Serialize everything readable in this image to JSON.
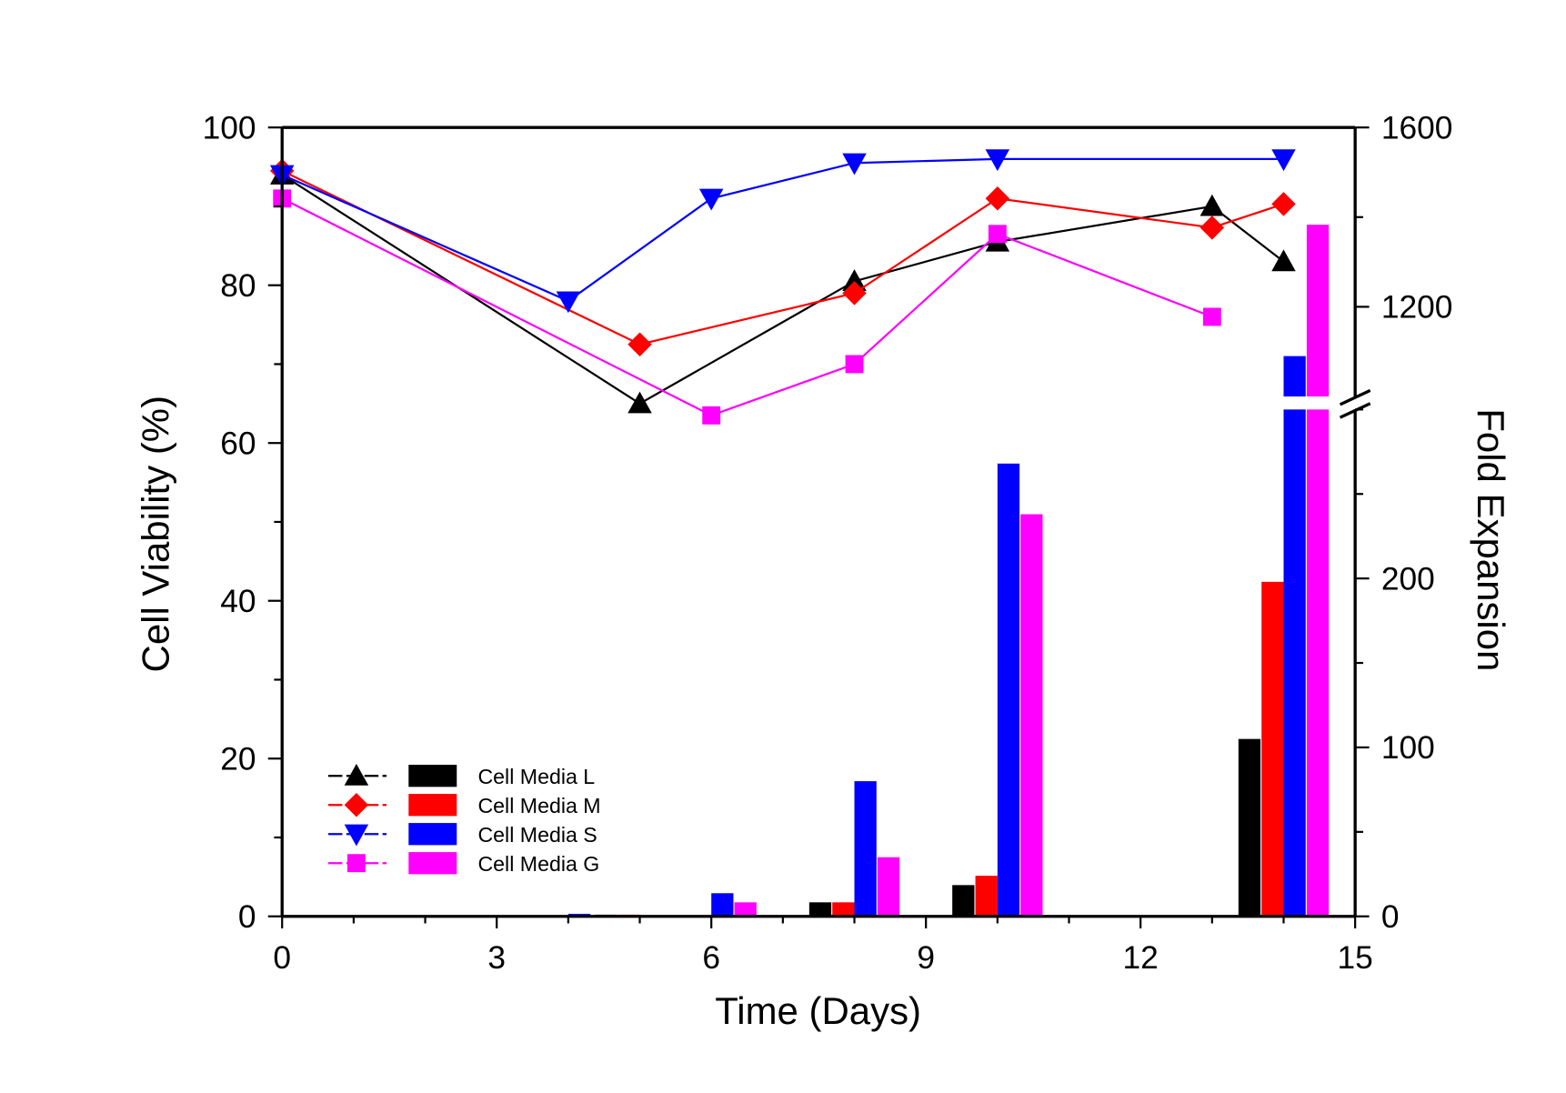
{
  "chart_data": {
    "type": "bar+line",
    "xlabel": "Time (Days)",
    "ylabel_left": "Cell Viability (%)",
    "ylabel_right": "Fold Expansion",
    "xlim": [
      0,
      15
    ],
    "xticks": [
      0,
      3,
      6,
      9,
      12,
      15
    ],
    "ylim_left": [
      0,
      100
    ],
    "yticks_left": [
      0,
      20,
      40,
      60,
      80,
      100
    ],
    "right_axis": {
      "broken": true,
      "lower_range": [
        0,
        300
      ],
      "upper_range": [
        1000,
        1600
      ],
      "ticks": [
        0,
        100,
        200,
        1200,
        1600
      ]
    },
    "grid": false,
    "legend_position": "bottom-left",
    "colors": {
      "L": "#000000",
      "M": "#ff0000",
      "S": "#0000ff",
      "G": "#ff00ff"
    },
    "line_series": [
      {
        "name": "Cell Media L",
        "key": "L",
        "marker": "triangle-up",
        "x": [
          0,
          5,
          8,
          10,
          13,
          14
        ],
        "y": [
          94,
          65,
          80.5,
          85.5,
          90,
          83
        ]
      },
      {
        "name": "Cell Media M",
        "key": "M",
        "marker": "diamond",
        "x": [
          0,
          5,
          8,
          10,
          13,
          14
        ],
        "y": [
          94.5,
          72.5,
          79,
          91,
          87.3,
          90.3
        ]
      },
      {
        "name": "Cell Media S",
        "key": "S",
        "marker": "triangle-down",
        "x": [
          0,
          4,
          6,
          8,
          10,
          14
        ],
        "y": [
          94,
          78,
          91,
          95.5,
          96,
          96
        ]
      },
      {
        "name": "Cell Media G",
        "key": "G",
        "marker": "square",
        "x": [
          0,
          6,
          8,
          10,
          13
        ],
        "y": [
          91,
          63.5,
          70,
          86.5,
          76
        ]
      }
    ],
    "bar_series": [
      {
        "name": "Cell Media L",
        "key": "L",
        "x": [
          5,
          6,
          8,
          10,
          14
        ],
        "y": [
          1,
          0.5,
          8.3,
          18.5,
          105
        ]
      },
      {
        "name": "Cell Media M",
        "key": "M",
        "x": [
          5,
          6,
          8,
          10,
          14
        ],
        "y": [
          1,
          0.5,
          8.3,
          24,
          198
        ]
      },
      {
        "name": "Cell Media S",
        "key": "S",
        "x": [
          4,
          6,
          8,
          10,
          14
        ],
        "y": [
          1.5,
          13.7,
          80,
          268,
          1090
        ]
      },
      {
        "name": "Cell Media G",
        "key": "G",
        "x": [
          6,
          8,
          10,
          14
        ],
        "y": [
          8.3,
          35,
          238,
          1383
        ]
      }
    ]
  }
}
